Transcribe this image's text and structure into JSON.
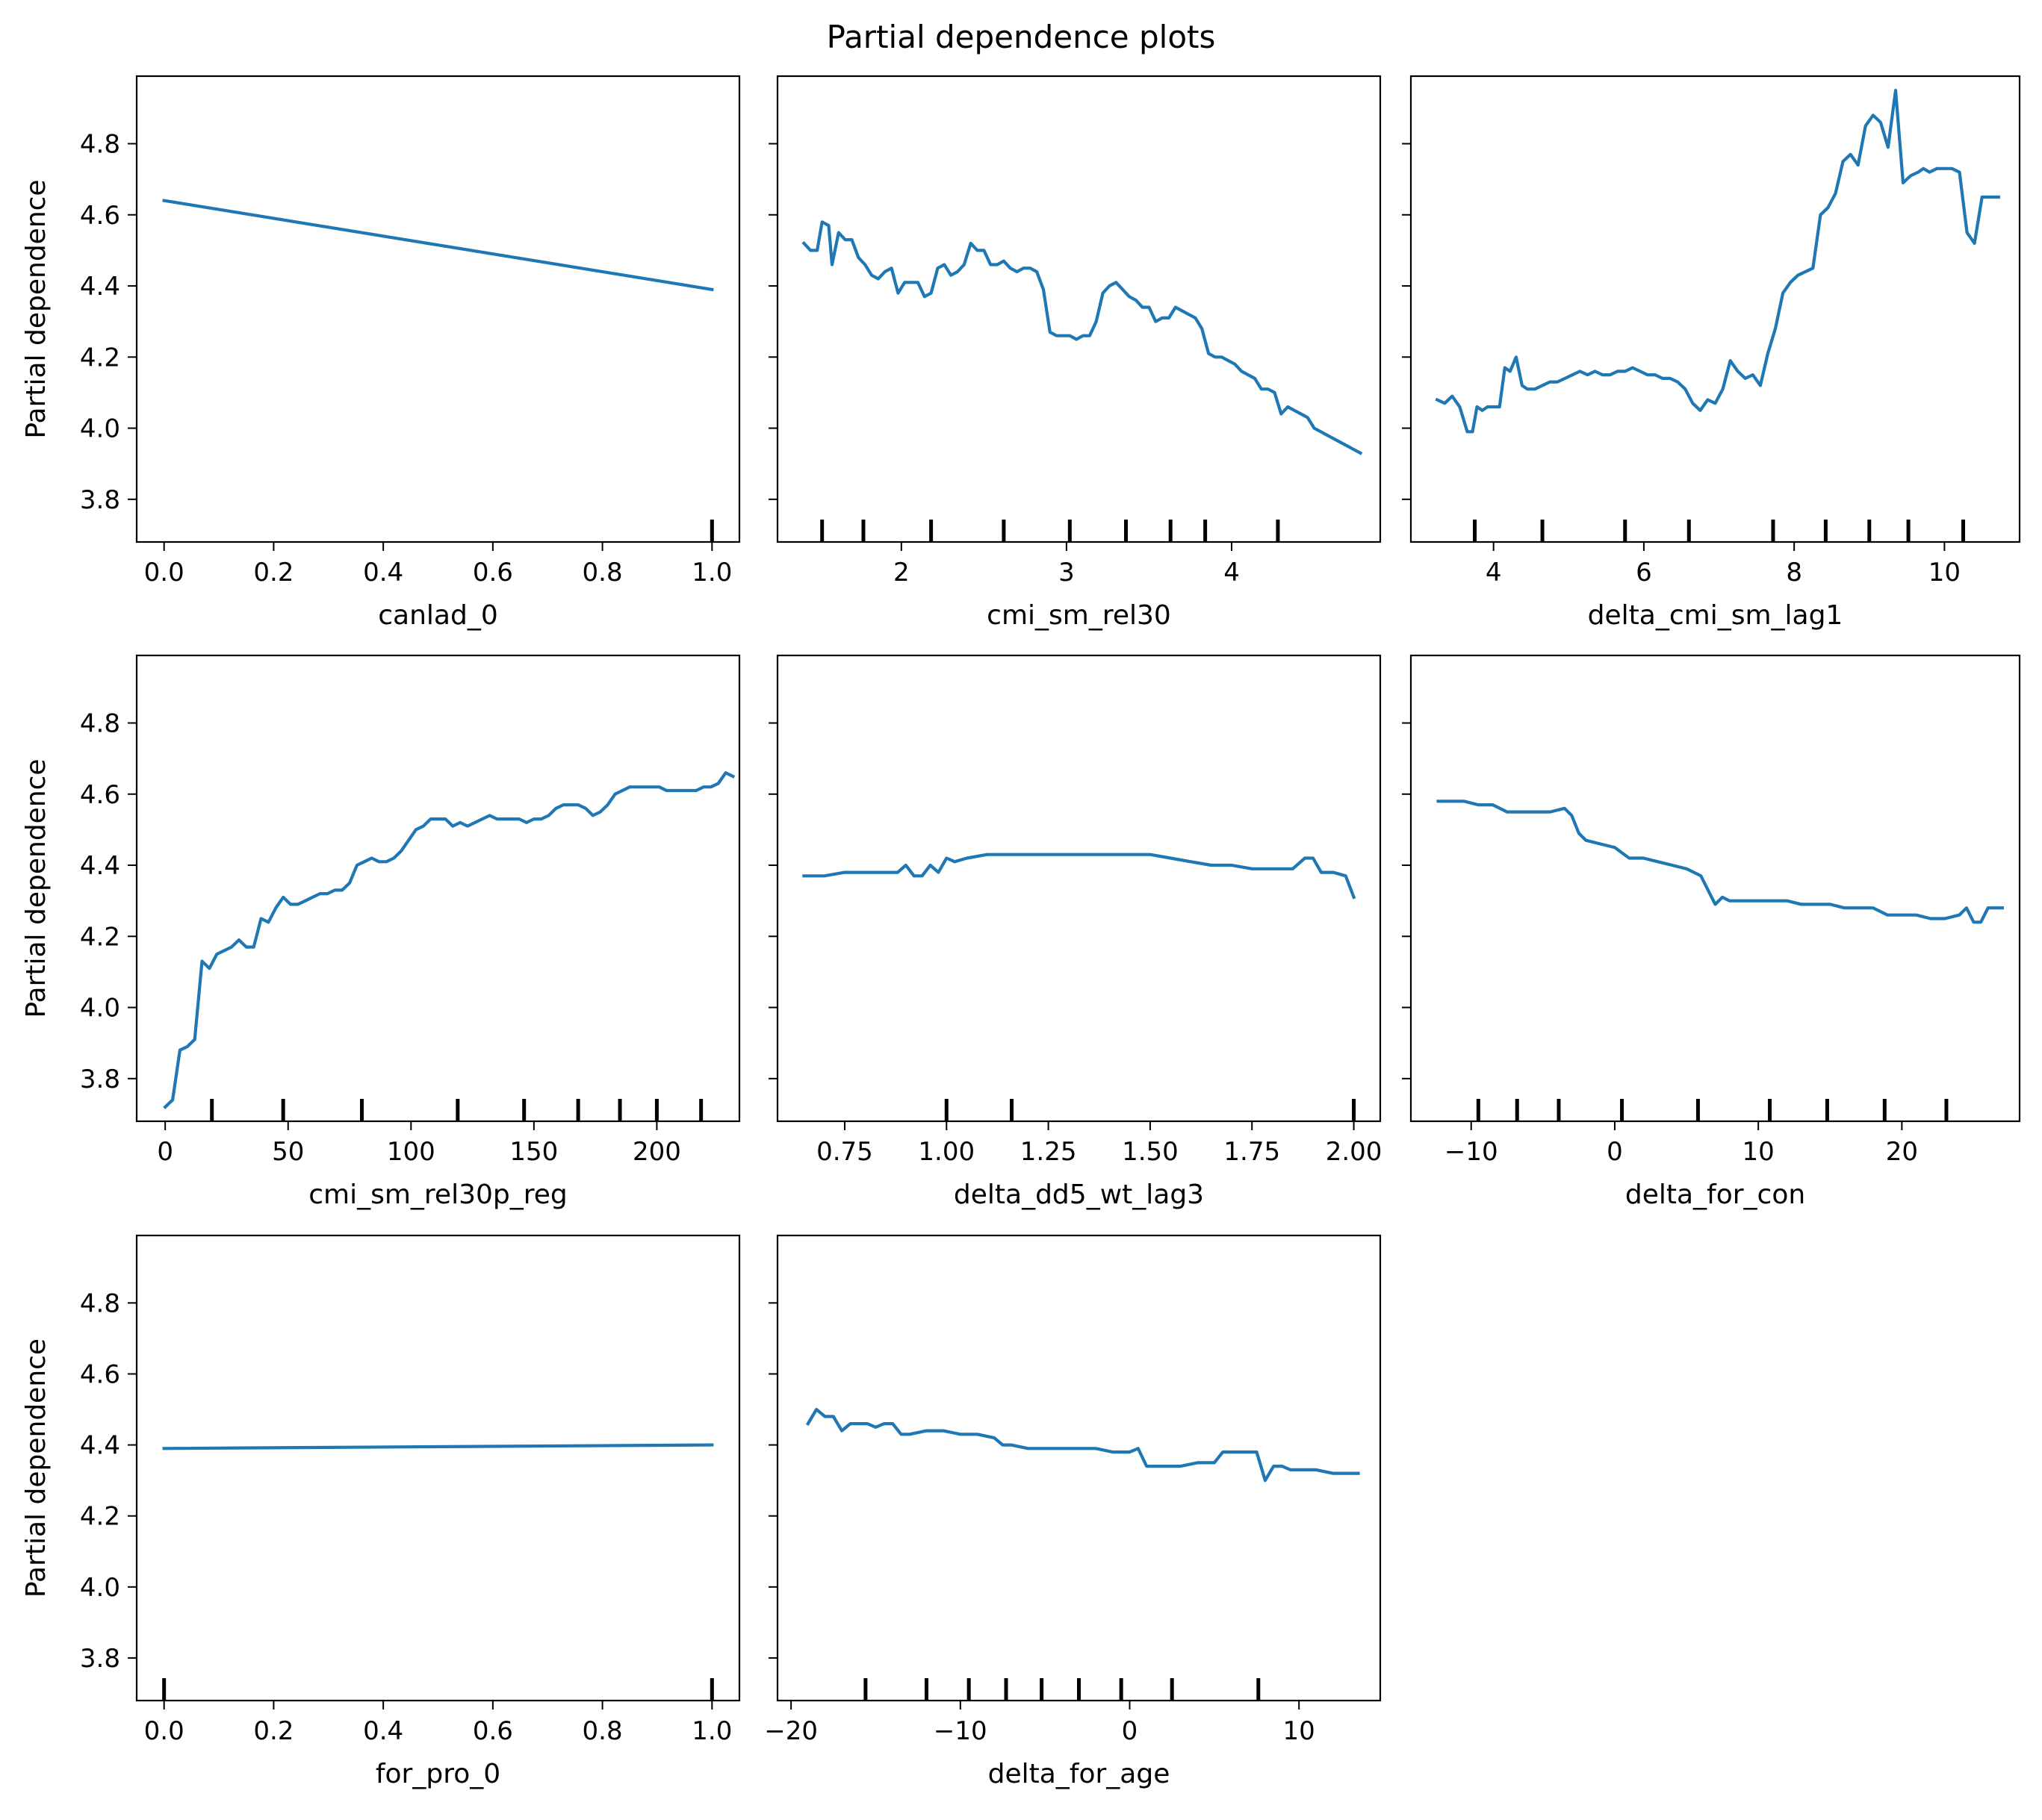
{
  "figure": {
    "title": "Partial dependence plots",
    "ylabel": "Partial dependence",
    "line_color": "#1f77b4",
    "ylim": [
      3.68,
      4.99
    ],
    "yticks": [
      3.8,
      4.0,
      4.2,
      4.4,
      4.6,
      4.8
    ],
    "ytick_labels": [
      "3.8",
      "4.0",
      "4.2",
      "4.4",
      "4.6",
      "4.8"
    ]
  },
  "chart_data": [
    {
      "type": "line",
      "xlabel": "canlad_0",
      "xlim": [
        -0.05,
        1.05
      ],
      "xticks": [
        0.0,
        0.2,
        0.4,
        0.6,
        0.8,
        1.0
      ],
      "xtick_labels": [
        "0.0",
        "0.2",
        "0.4",
        "0.6",
        "0.8",
        "1.0"
      ],
      "deciles": [
        1.0
      ],
      "x": [
        0.0,
        1.0
      ],
      "y": [
        4.64,
        4.39
      ]
    },
    {
      "type": "line",
      "xlabel": "cmi_sm_rel30",
      "xlim": [
        1.25,
        4.9
      ],
      "xticks": [
        2,
        3,
        4
      ],
      "xtick_labels": [
        "2",
        "3",
        "4"
      ],
      "deciles": [
        1.52,
        1.77,
        2.18,
        2.62,
        3.02,
        3.36,
        3.63,
        3.84,
        4.28
      ],
      "x": [
        1.41,
        1.45,
        1.49,
        1.52,
        1.56,
        1.58,
        1.62,
        1.66,
        1.7,
        1.74,
        1.78,
        1.82,
        1.86,
        1.9,
        1.94,
        1.98,
        2.02,
        2.06,
        2.1,
        2.14,
        2.18,
        2.22,
        2.26,
        2.3,
        2.34,
        2.38,
        2.42,
        2.46,
        2.5,
        2.54,
        2.58,
        2.62,
        2.66,
        2.7,
        2.74,
        2.78,
        2.82,
        2.86,
        2.9,
        2.94,
        2.98,
        3.02,
        3.06,
        3.1,
        3.14,
        3.18,
        3.22,
        3.26,
        3.3,
        3.34,
        3.38,
        3.42,
        3.46,
        3.5,
        3.54,
        3.58,
        3.62,
        3.66,
        3.7,
        3.74,
        3.78,
        3.82,
        3.86,
        3.9,
        3.94,
        3.98,
        4.02,
        4.06,
        4.1,
        4.14,
        4.18,
        4.22,
        4.26,
        4.3,
        4.34,
        4.38,
        4.42,
        4.46,
        4.5,
        4.54,
        4.58,
        4.62,
        4.66,
        4.7,
        4.74,
        4.78
      ],
      "y": [
        4.52,
        4.5,
        4.5,
        4.58,
        4.57,
        4.46,
        4.55,
        4.53,
        4.53,
        4.48,
        4.46,
        4.43,
        4.42,
        4.44,
        4.45,
        4.38,
        4.41,
        4.41,
        4.41,
        4.37,
        4.38,
        4.45,
        4.46,
        4.43,
        4.44,
        4.46,
        4.52,
        4.5,
        4.5,
        4.46,
        4.46,
        4.47,
        4.45,
        4.44,
        4.45,
        4.45,
        4.44,
        4.39,
        4.27,
        4.26,
        4.26,
        4.26,
        4.25,
        4.26,
        4.26,
        4.3,
        4.38,
        4.4,
        4.41,
        4.39,
        4.37,
        4.36,
        4.34,
        4.34,
        4.3,
        4.31,
        4.31,
        4.34,
        4.33,
        4.32,
        4.31,
        4.28,
        4.21,
        4.2,
        4.2,
        4.19,
        4.18,
        4.16,
        4.15,
        4.14,
        4.11,
        4.11,
        4.1,
        4.04,
        4.06,
        4.05,
        4.04,
        4.03,
        4.0,
        3.99,
        3.98,
        3.97,
        3.96,
        3.95,
        3.94,
        3.93
      ]
    },
    {
      "type": "line",
      "xlabel": "delta_cmi_sm_lag1",
      "xlim": [
        2.9,
        11.0
      ],
      "xticks": [
        4,
        6,
        8,
        10
      ],
      "xtick_labels": [
        "4",
        "6",
        "8",
        "10"
      ],
      "deciles": [
        3.75,
        4.65,
        5.75,
        6.6,
        7.72,
        8.42,
        9.0,
        9.52,
        10.25
      ],
      "x": [
        3.25,
        3.35,
        3.45,
        3.55,
        3.65,
        3.72,
        3.78,
        3.85,
        3.92,
        4.0,
        4.08,
        4.15,
        4.22,
        4.3,
        4.38,
        4.45,
        4.55,
        4.65,
        4.75,
        4.85,
        4.95,
        5.05,
        5.15,
        5.25,
        5.35,
        5.45,
        5.55,
        5.65,
        5.75,
        5.85,
        5.95,
        6.05,
        6.15,
        6.25,
        6.35,
        6.45,
        6.55,
        6.65,
        6.75,
        6.85,
        6.95,
        7.05,
        7.15,
        7.25,
        7.35,
        7.45,
        7.55,
        7.65,
        7.75,
        7.85,
        7.95,
        8.05,
        8.15,
        8.25,
        8.35,
        8.45,
        8.55,
        8.65,
        8.75,
        8.85,
        8.95,
        9.05,
        9.15,
        9.25,
        9.35,
        9.45,
        9.55,
        9.65,
        9.72,
        9.8,
        9.9,
        10.0,
        10.1,
        10.2,
        10.3,
        10.4,
        10.5,
        10.58,
        10.65,
        10.72
      ],
      "y": [
        4.08,
        4.07,
        4.09,
        4.06,
        3.99,
        3.99,
        4.06,
        4.05,
        4.06,
        4.06,
        4.06,
        4.17,
        4.16,
        4.2,
        4.12,
        4.11,
        4.11,
        4.12,
        4.13,
        4.13,
        4.14,
        4.15,
        4.16,
        4.15,
        4.16,
        4.15,
        4.15,
        4.16,
        4.16,
        4.17,
        4.16,
        4.15,
        4.15,
        4.14,
        4.14,
        4.13,
        4.11,
        4.07,
        4.05,
        4.08,
        4.07,
        4.11,
        4.19,
        4.16,
        4.14,
        4.15,
        4.12,
        4.21,
        4.28,
        4.38,
        4.41,
        4.43,
        4.44,
        4.45,
        4.6,
        4.62,
        4.66,
        4.75,
        4.77,
        4.74,
        4.85,
        4.88,
        4.86,
        4.79,
        4.95,
        4.69,
        4.71,
        4.72,
        4.73,
        4.72,
        4.73,
        4.73,
        4.73,
        4.72,
        4.55,
        4.52,
        4.65,
        4.65,
        4.65,
        4.65
      ]
    },
    {
      "type": "line",
      "xlabel": "cmi_sm_rel30p_reg",
      "xlim": [
        -11.6,
        233.6
      ],
      "xticks": [
        0,
        50,
        100,
        150,
        200
      ],
      "xtick_labels": [
        "0",
        "50",
        "100",
        "150",
        "200"
      ],
      "deciles": [
        19,
        48,
        80,
        119,
        146,
        168,
        185,
        200,
        218
      ],
      "x": [
        0,
        3,
        6,
        9,
        12,
        15,
        18,
        21,
        24,
        27,
        30,
        33,
        36,
        39,
        42,
        45,
        48,
        51,
        54,
        57,
        60,
        63,
        66,
        69,
        72,
        75,
        78,
        81,
        84,
        87,
        90,
        93,
        96,
        99,
        102,
        105,
        108,
        111,
        114,
        117,
        120,
        123,
        126,
        129,
        132,
        135,
        138,
        141,
        144,
        147,
        150,
        153,
        156,
        159,
        162,
        165,
        168,
        171,
        174,
        177,
        180,
        183,
        186,
        189,
        192,
        195,
        198,
        201,
        204,
        207,
        210,
        213,
        216,
        219,
        222,
        225,
        228,
        231
      ],
      "y": [
        3.72,
        3.74,
        3.88,
        3.89,
        3.91,
        4.13,
        4.11,
        4.15,
        4.16,
        4.17,
        4.19,
        4.17,
        4.17,
        4.25,
        4.24,
        4.28,
        4.31,
        4.29,
        4.29,
        4.3,
        4.31,
        4.32,
        4.32,
        4.33,
        4.33,
        4.35,
        4.4,
        4.41,
        4.42,
        4.41,
        4.41,
        4.42,
        4.44,
        4.47,
        4.5,
        4.51,
        4.53,
        4.53,
        4.53,
        4.51,
        4.52,
        4.51,
        4.52,
        4.53,
        4.54,
        4.53,
        4.53,
        4.53,
        4.53,
        4.52,
        4.53,
        4.53,
        4.54,
        4.56,
        4.57,
        4.57,
        4.57,
        4.56,
        4.54,
        4.55,
        4.57,
        4.6,
        4.61,
        4.62,
        4.62,
        4.62,
        4.62,
        4.62,
        4.61,
        4.61,
        4.61,
        4.61,
        4.61,
        4.62,
        4.62,
        4.63,
        4.66,
        4.65
      ]
    },
    {
      "type": "line",
      "xlabel": "delta_dd5_wt_lag3",
      "xlim": [
        0.585,
        2.065
      ],
      "xticks": [
        0.75,
        1.0,
        1.25,
        1.5,
        1.75,
        2.0
      ],
      "xtick_labels": [
        "0.75",
        "1.00",
        "1.25",
        "1.50",
        "1.75",
        "2.00"
      ],
      "deciles": [
        1.0,
        1.16,
        2.0
      ],
      "x": [
        0.65,
        0.7,
        0.75,
        0.8,
        0.85,
        0.88,
        0.9,
        0.92,
        0.94,
        0.96,
        0.98,
        1.0,
        1.02,
        1.05,
        1.1,
        1.15,
        1.2,
        1.25,
        1.3,
        1.35,
        1.4,
        1.45,
        1.5,
        1.55,
        1.6,
        1.65,
        1.7,
        1.75,
        1.8,
        1.85,
        1.88,
        1.9,
        1.92,
        1.95,
        1.98,
        2.0
      ],
      "y": [
        4.37,
        4.37,
        4.38,
        4.38,
        4.38,
        4.38,
        4.4,
        4.37,
        4.37,
        4.4,
        4.38,
        4.42,
        4.41,
        4.42,
        4.43,
        4.43,
        4.43,
        4.43,
        4.43,
        4.43,
        4.43,
        4.43,
        4.43,
        4.42,
        4.41,
        4.4,
        4.4,
        4.39,
        4.39,
        4.39,
        4.42,
        4.42,
        4.38,
        4.38,
        4.37,
        4.31
      ]
    },
    {
      "type": "line",
      "xlabel": "delta_for_con",
      "xlim": [
        -14.2,
        28.2
      ],
      "xticks": [
        -10,
        0,
        10,
        20
      ],
      "xtick_labels": [
        "−10",
        "0",
        "10",
        "20"
      ],
      "deciles": [
        -9.5,
        -6.8,
        -3.9,
        0.5,
        5.8,
        10.8,
        14.8,
        18.8,
        23.1
      ],
      "x": [
        -12.3,
        -11.5,
        -10.5,
        -9.5,
        -8.5,
        -7.5,
        -6.5,
        -5.5,
        -4.5,
        -3.5,
        -3.0,
        -2.5,
        -2.0,
        -1.0,
        0.0,
        1.0,
        2.0,
        3.0,
        4.0,
        5.0,
        6.0,
        6.5,
        7.0,
        7.5,
        8.0,
        9.0,
        10.0,
        11.0,
        12.0,
        13.0,
        14.0,
        15.0,
        16.0,
        17.0,
        18.0,
        19.0,
        20.0,
        21.0,
        22.0,
        23.0,
        24.0,
        24.5,
        25.0,
        25.5,
        26.0,
        26.5,
        27.0
      ],
      "y": [
        4.58,
        4.58,
        4.58,
        4.57,
        4.57,
        4.55,
        4.55,
        4.55,
        4.55,
        4.56,
        4.54,
        4.49,
        4.47,
        4.46,
        4.45,
        4.42,
        4.42,
        4.41,
        4.4,
        4.39,
        4.37,
        4.33,
        4.29,
        4.31,
        4.3,
        4.3,
        4.3,
        4.3,
        4.3,
        4.29,
        4.29,
        4.29,
        4.28,
        4.28,
        4.28,
        4.26,
        4.26,
        4.26,
        4.25,
        4.25,
        4.26,
        4.28,
        4.24,
        4.24,
        4.28,
        4.28,
        4.28
      ]
    },
    {
      "type": "line",
      "xlabel": "for_pro_0",
      "xlim": [
        -0.05,
        1.05
      ],
      "xticks": [
        0.0,
        0.2,
        0.4,
        0.6,
        0.8,
        1.0
      ],
      "xtick_labels": [
        "0.0",
        "0.2",
        "0.4",
        "0.6",
        "0.8",
        "1.0"
      ],
      "deciles": [
        0.0,
        1.0
      ],
      "x": [
        0.0,
        1.0
      ],
      "y": [
        4.39,
        4.4
      ]
    },
    {
      "type": "line",
      "xlabel": "delta_for_age",
      "xlim": [
        -20.8,
        14.8
      ],
      "xticks": [
        -20,
        -10,
        0,
        10
      ],
      "xtick_labels": [
        "−20",
        "−10",
        "0",
        "10"
      ],
      "deciles": [
        -15.6,
        -12.0,
        -9.5,
        -7.3,
        -5.2,
        -3.0,
        -0.5,
        2.5,
        7.6
      ],
      "x": [
        -19.0,
        -18.5,
        -18.0,
        -17.5,
        -17.0,
        -16.5,
        -16.0,
        -15.5,
        -15.0,
        -14.5,
        -14.0,
        -13.5,
        -13.0,
        -12.0,
        -11.0,
        -10.0,
        -9.0,
        -8.0,
        -7.5,
        -7.0,
        -6.0,
        -5.0,
        -4.0,
        -3.0,
        -2.0,
        -1.0,
        0.0,
        0.5,
        1.0,
        1.5,
        2.0,
        3.0,
        4.0,
        5.0,
        5.5,
        6.0,
        6.5,
        7.0,
        7.5,
        8.0,
        8.5,
        9.0,
        9.5,
        10.0,
        11.0,
        12.0,
        13.5
      ],
      "y": [
        4.46,
        4.5,
        4.48,
        4.48,
        4.44,
        4.46,
        4.46,
        4.46,
        4.45,
        4.46,
        4.46,
        4.43,
        4.43,
        4.44,
        4.44,
        4.43,
        4.43,
        4.42,
        4.4,
        4.4,
        4.39,
        4.39,
        4.39,
        4.39,
        4.39,
        4.38,
        4.38,
        4.39,
        4.34,
        4.34,
        4.34,
        4.34,
        4.35,
        4.35,
        4.38,
        4.38,
        4.38,
        4.38,
        4.38,
        4.3,
        4.34,
        4.34,
        4.33,
        4.33,
        4.33,
        4.32,
        4.32
      ]
    }
  ]
}
